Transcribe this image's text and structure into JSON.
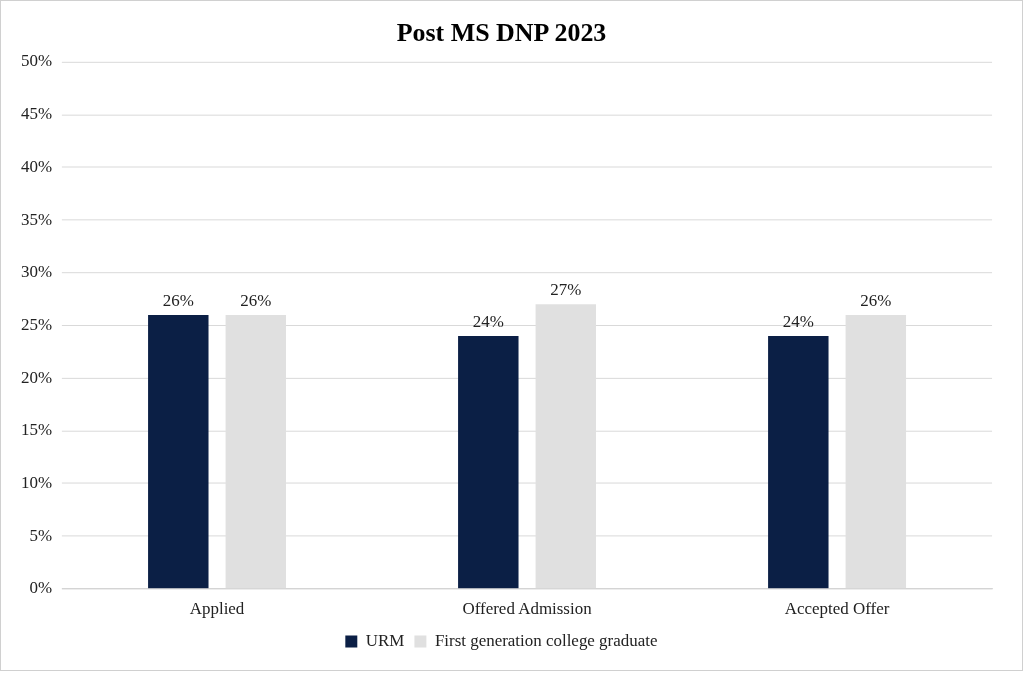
{
  "chart_data": {
    "type": "bar",
    "title": "Post MS DNP 2023",
    "categories": [
      "Applied",
      "Offered Admission",
      "Accepted Offer"
    ],
    "series": [
      {
        "name": "URM",
        "color": "#0b1f45",
        "values": [
          26,
          24,
          24
        ],
        "value_labels": [
          "26%",
          "24%",
          "24%"
        ]
      },
      {
        "name": "First generation college graduate",
        "color": "#e0e0e0",
        "values": [
          26,
          27,
          26
        ],
        "value_labels": [
          "26%",
          "27%",
          "26%"
        ]
      }
    ],
    "ylim": [
      0,
      50
    ],
    "yticks": [
      {
        "value": 0,
        "label": "0%"
      },
      {
        "value": 5,
        "label": "5%"
      },
      {
        "value": 10,
        "label": "10%"
      },
      {
        "value": 15,
        "label": "15%"
      },
      {
        "value": 20,
        "label": "20%"
      },
      {
        "value": 25,
        "label": "25%"
      },
      {
        "value": 30,
        "label": "30%"
      },
      {
        "value": 35,
        "label": "35%"
      },
      {
        "value": 40,
        "label": "40%"
      },
      {
        "value": 45,
        "label": "45%"
      },
      {
        "value": 50,
        "label": "50%"
      }
    ],
    "grid": "y",
    "legend": "bottom"
  }
}
